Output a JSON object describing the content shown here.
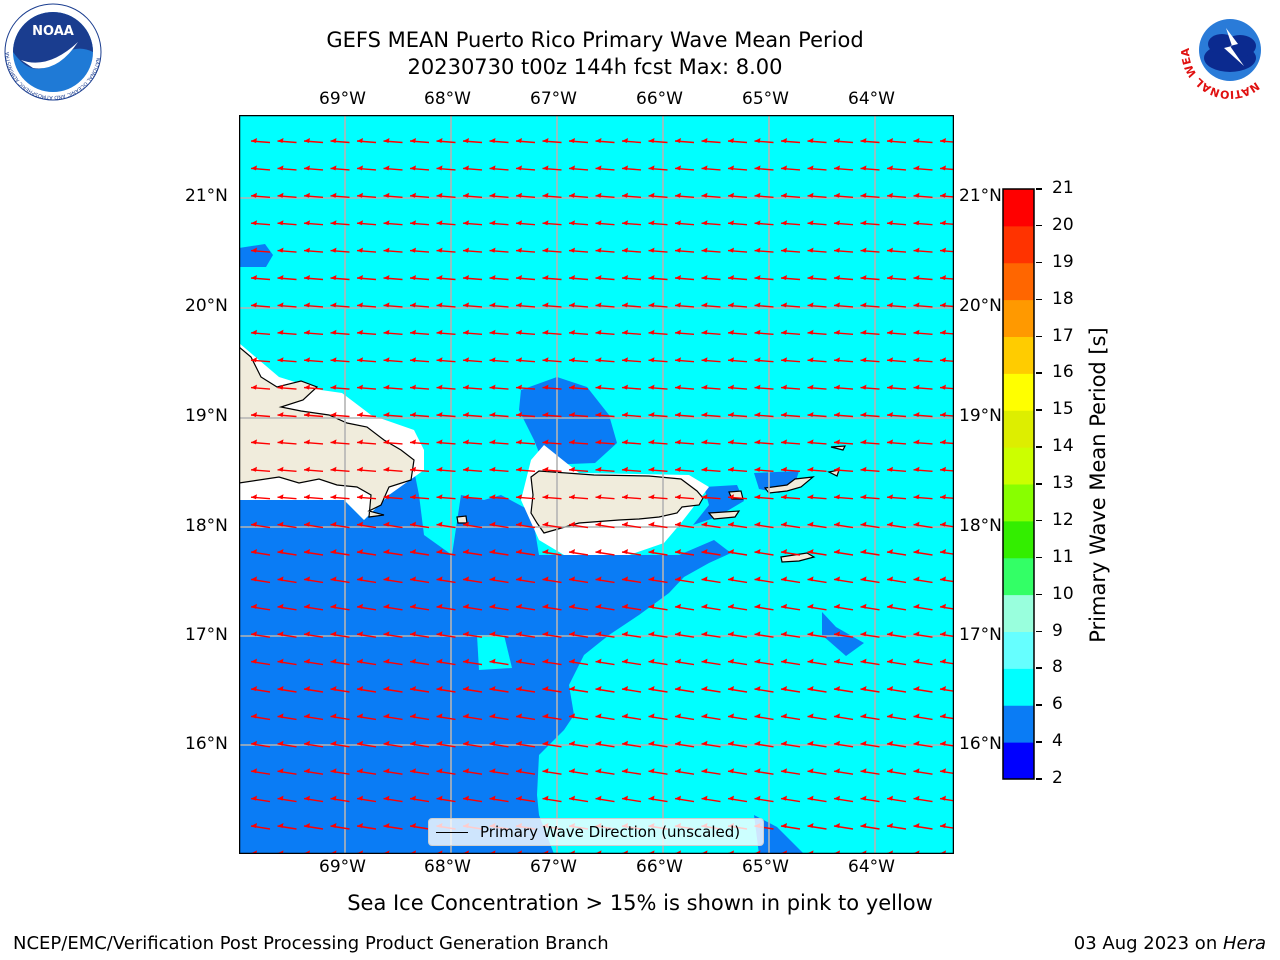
{
  "header": {
    "title_line1": "GEFS MEAN Puerto Rico Primary Wave Mean Period",
    "title_line2": "20230730 t00z 144h fcst   Max: 8.00"
  },
  "logos": {
    "left": "NOAA",
    "left_ring": "NATIONAL OCEANIC AND ATMOSPHERIC ADMINISTRATION · U.S. DEPARTMENT OF COMMERCE",
    "right_ring": "NATIONAL WEATHER SERVICE"
  },
  "map": {
    "lon_labels": [
      "69°W",
      "68°W",
      "67°W",
      "66°W",
      "65°W",
      "64°W"
    ],
    "lat_labels": [
      "21°N",
      "20°N",
      "19°N",
      "18°N",
      "17°N",
      "16°N"
    ],
    "legend_label": "Primary Wave Direction (unscaled)",
    "wave_direction": "west",
    "colors": {
      "c4_6": "#0a7cf5",
      "c6_8": "#00ffff",
      "land": "#f0ecdc",
      "arrow": "#ff0000"
    }
  },
  "colorbar": {
    "label": "Primary Wave Mean Period [s]",
    "ticks": [
      "2",
      "4",
      "6",
      "8",
      "9",
      "10",
      "11",
      "12",
      "13",
      "14",
      "15",
      "16",
      "17",
      "18",
      "19",
      "20",
      "21"
    ],
    "colors": [
      "#0000ff",
      "#0a7cf5",
      "#00ffff",
      "#66ffff",
      "#99ffdd",
      "#33ff66",
      "#33ee00",
      "#88ff00",
      "#ccff00",
      "#ddee00",
      "#ffff00",
      "#ffcc00",
      "#ff9900",
      "#ff6600",
      "#ff3300",
      "#ff0000"
    ]
  },
  "footer": {
    "note": "Sea Ice Concentration > 15% is shown in pink to yellow",
    "credit": "NCEP/EMC/Verification Post Processing Product Generation Branch",
    "date": "03 Aug 2023 on ",
    "machine": "Hera"
  }
}
